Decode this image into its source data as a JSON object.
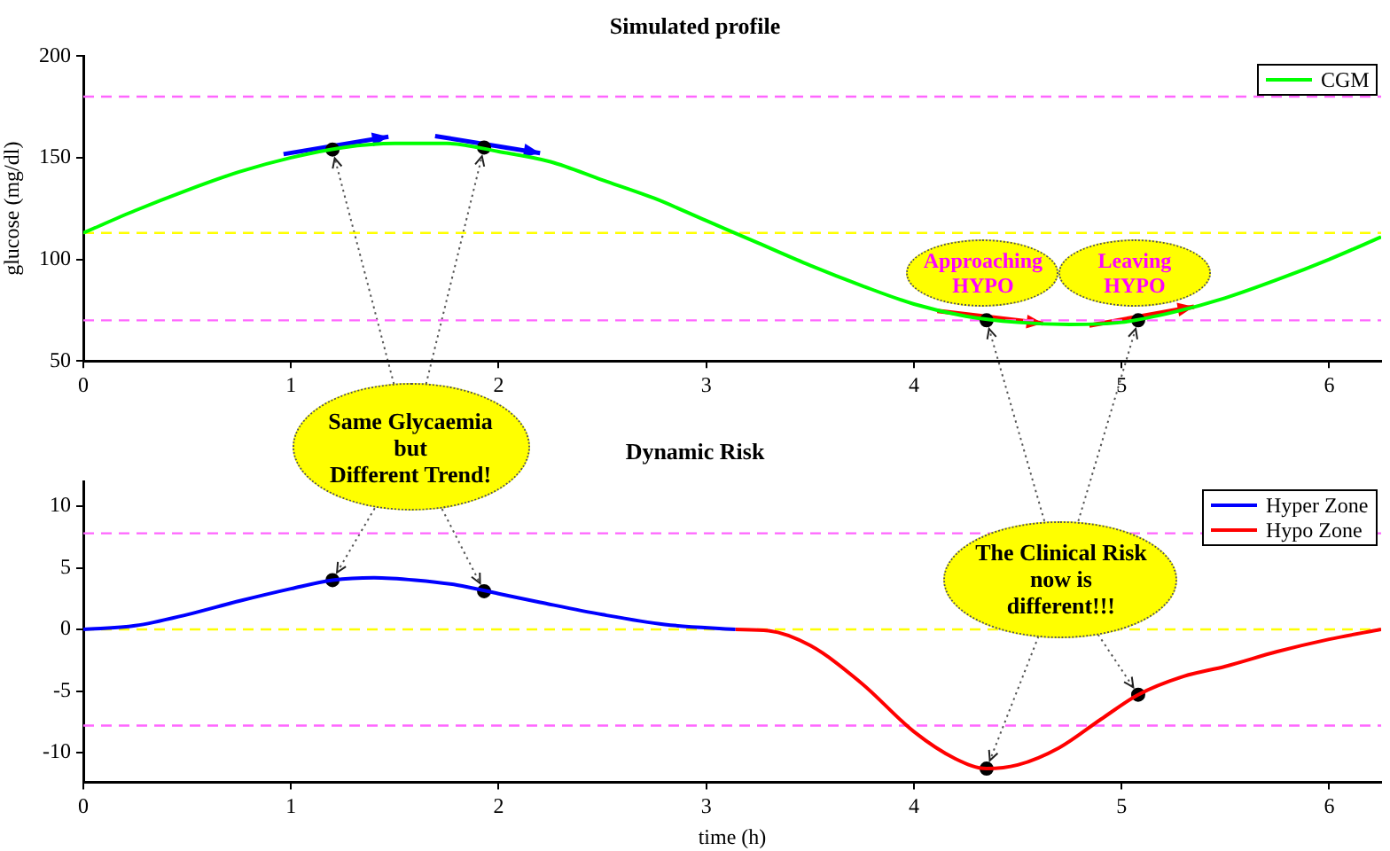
{
  "chart_data": [
    {
      "type": "line",
      "title": "Simulated profile",
      "ylabel": "glucose (mg/dl)",
      "xlim": [
        0,
        6.25
      ],
      "xticks": [
        0,
        1,
        2,
        3,
        4,
        5,
        6
      ],
      "ylim": [
        50,
        200
      ],
      "yticks": [
        50,
        100,
        150,
        200
      ],
      "grid": false,
      "legend": "top right",
      "marker": "none",
      "line_style": "solid",
      "series": [
        {
          "name": "CGM",
          "color": "#00ff00",
          "x": [
            0,
            0.25,
            0.5,
            0.75,
            1,
            1.25,
            1.5,
            1.75,
            2,
            2.25,
            2.5,
            2.75,
            3,
            3.25,
            3.5,
            3.75,
            4,
            4.25,
            4.5,
            4.75,
            5,
            5.25,
            5.5,
            5.75,
            6,
            6.25
          ],
          "values": [
            113,
            124,
            134,
            143,
            150,
            155,
            157,
            157,
            153,
            148,
            139,
            130,
            119,
            108,
            97,
            87,
            78,
            72,
            69,
            68,
            69,
            74,
            81,
            90,
            100,
            111
          ]
        },
        {
          "type": "scatter",
          "color": "#000000",
          "marker": "circle",
          "x": [
            1.2,
            1.93,
            4.35,
            5.08
          ],
          "values": [
            154,
            155,
            70,
            70
          ]
        }
      ],
      "ref_lines": [
        {
          "axis": "y",
          "value": 180,
          "color": "#ff66ff",
          "line_style": "dashed"
        },
        {
          "axis": "y",
          "value": 113,
          "color": "#ffff00",
          "line_style": "dashed"
        },
        {
          "axis": "y",
          "value": 70,
          "color": "#ff66ff",
          "line_style": "dashed"
        }
      ],
      "annotations": [
        {
          "text": "Same Glycaemia\nbut\nDifferent Trend!",
          "x": 1.2,
          "y": 154
        },
        {
          "text": "Approaching\nHYPO",
          "x": 4.35,
          "y": 70
        },
        {
          "text": "Leaving\nHYPO",
          "x": 5.08,
          "y": 70
        }
      ]
    },
    {
      "type": "line",
      "title": "Dynamic Risk",
      "xlabel": "time (h)",
      "xlim": [
        0,
        6.25
      ],
      "xticks": [
        0,
        1,
        2,
        3,
        4,
        5,
        6
      ],
      "ylim": [
        -12.4,
        12
      ],
      "yticks": [
        -10,
        -5,
        0,
        5,
        10
      ],
      "grid": false,
      "legend": "top right",
      "marker": "none",
      "line_style": "solid",
      "series": [
        {
          "name": "Hyper Zone",
          "color": "#0000ff",
          "x": [
            0,
            0.25,
            0.5,
            0.75,
            1,
            1.2,
            1.4,
            1.6,
            1.8,
            2,
            2.2,
            2.5,
            2.8,
            3.14
          ],
          "values": [
            0,
            0.3,
            1.2,
            2.3,
            3.3,
            4,
            4.2,
            4,
            3.6,
            2.9,
            2.2,
            1.2,
            0.4,
            0
          ]
        },
        {
          "name": "Hypo Zone",
          "color": "#ff0000",
          "x": [
            3.14,
            3.3,
            3.5,
            3.75,
            4,
            4.2,
            4.35,
            4.5,
            4.7,
            4.9,
            5.08,
            5.3,
            5.5,
            5.75,
            6,
            6.25
          ],
          "values": [
            0,
            -0.1,
            -1.3,
            -4.4,
            -8.3,
            -10.5,
            -11.3,
            -11,
            -9.6,
            -7.3,
            -5.3,
            -3.8,
            -3,
            -1.8,
            -0.8,
            0
          ]
        },
        {
          "type": "scatter",
          "color": "#000000",
          "marker": "circle",
          "x": [
            1.2,
            1.93,
            4.35,
            5.08
          ],
          "values": [
            4,
            3.1,
            -11.3,
            -5.3
          ]
        }
      ],
      "ref_lines": [
        {
          "axis": "y",
          "value": 7.8,
          "color": "#ff66ff",
          "line_style": "dashed"
        },
        {
          "axis": "y",
          "value": 0,
          "color": "#ffff00",
          "line_style": "dashed"
        },
        {
          "axis": "y",
          "value": -7.8,
          "color": "#ff66ff",
          "line_style": "dashed"
        }
      ],
      "annotations": [
        {
          "text": "The Clinical Risk\nnow is\ndifferent!!!",
          "x": 4.35,
          "y": -11.3
        }
      ]
    }
  ]
}
